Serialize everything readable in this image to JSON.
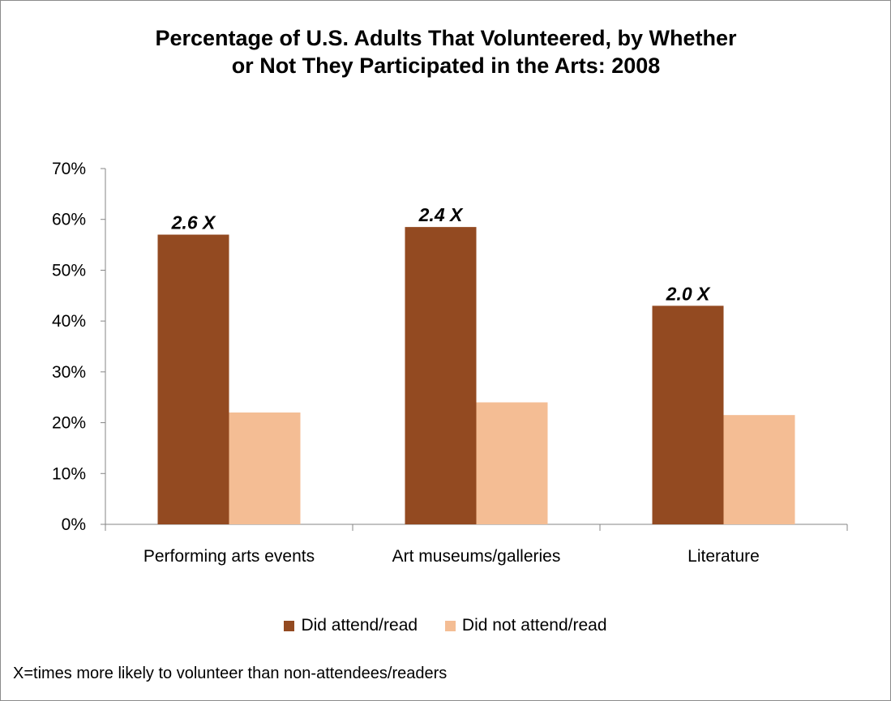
{
  "chart_data": {
    "type": "bar",
    "title_lines": [
      "Percentage of U.S. Adults That  Volunteered, by Whether",
      "or Not They Participated in the Arts: 2008"
    ],
    "categories": [
      "Performing arts events",
      "Art museums/galleries",
      "Literature"
    ],
    "series": [
      {
        "name": "Did attend/read",
        "color": "#934a21",
        "values": [
          57,
          58.5,
          43
        ]
      },
      {
        "name": "Did not attend/read",
        "color": "#f4bd94",
        "values": [
          22,
          24,
          21.5
        ]
      }
    ],
    "annotations": [
      "2.6 X",
      "2.4 X",
      "2.0 X"
    ],
    "ylim": [
      0,
      70
    ],
    "yticks": [
      "0%",
      "10%",
      "20%",
      "30%",
      "40%",
      "50%",
      "60%",
      "70%"
    ],
    "grid": false,
    "legend_position": "bottom",
    "xlabel": "",
    "ylabel": ""
  },
  "footnote": "X=times more likely to volunteer than non-attendees/readers"
}
